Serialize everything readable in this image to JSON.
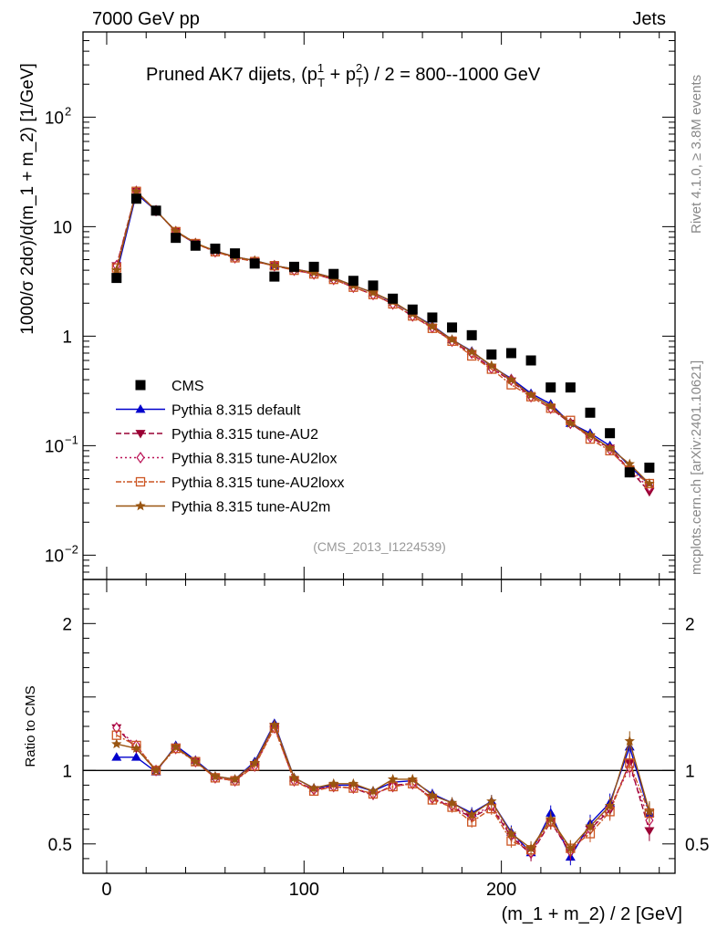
{
  "header": {
    "left": "7000 GeV pp",
    "right": "Jets"
  },
  "side_labels": {
    "rivet": "Rivet 4.1.0, ≥ 3.8M events",
    "mcplots": "mcplots.cern.ch [arXiv:2401.10621]"
  },
  "chart_data": {
    "type": "line",
    "title": "Pruned AK7 dijets, (p_T^1 + p_T^2) / 2 = 800--1000 GeV",
    "title_parts": {
      "prefix": "Pruned AK7 dijets, (p",
      "sub1": "T",
      "sup1": "1",
      "plus": " + p",
      "sub2": "T",
      "sup2": "2",
      "suffix": ") / 2 = 800--1000 GeV"
    },
    "watermark": "(CMS_2013_I1224539)",
    "xlabel": "(m_1 + m_2) / 2 [GeV]",
    "ylabel": "1000/σ   2dσ)/d(m_1 + m_2) [1/GeV]",
    "ratio_ylabel": "Ratio to CMS",
    "xlim": [
      -12,
      288
    ],
    "ylim": [
      0.006,
      600
    ],
    "ylog": true,
    "ratio_ylim": [
      0.3,
      2.3
    ],
    "x_ticks": [
      0,
      100,
      200
    ],
    "y_ticks": [
      {
        "value": 0.01,
        "base": "10",
        "exp": "−2"
      },
      {
        "value": 0.1,
        "base": "10",
        "exp": "−1"
      },
      {
        "value": 1,
        "base": "1",
        "exp": ""
      },
      {
        "value": 10,
        "base": "10",
        "exp": ""
      },
      {
        "value": 100,
        "base": "10",
        "exp": "2"
      }
    ],
    "ratio_ticks": [
      {
        "value": 0.5,
        "label": "0.5"
      },
      {
        "value": 1,
        "label": "1"
      },
      {
        "value": 2,
        "label": "2"
      }
    ],
    "x": [
      5,
      15,
      25,
      35,
      45,
      55,
      65,
      75,
      85,
      95,
      105,
      115,
      125,
      135,
      145,
      155,
      165,
      175,
      185,
      195,
      205,
      215,
      225,
      235,
      245,
      255,
      265,
      275
    ],
    "data": {
      "name": "CMS",
      "values": [
        3.4,
        18,
        14,
        7.9,
        6.7,
        6.3,
        5.7,
        4.6,
        3.5,
        4.3,
        4.3,
        3.7,
        3.2,
        2.9,
        2.2,
        1.75,
        1.48,
        1.2,
        1.02,
        0.68,
        0.7,
        0.6,
        0.34,
        0.34,
        0.2,
        0.13,
        0.057,
        0.063
      ]
    },
    "series": [
      {
        "name": "Pythia 8.315 default",
        "color": "#0000cc",
        "dash": "",
        "marker": "triangle-up",
        "values": [
          3.7,
          20,
          14,
          9.0,
          7.0,
          6.0,
          5.3,
          4.9,
          4.4,
          4.1,
          3.8,
          3.4,
          2.9,
          2.5,
          2.05,
          1.6,
          1.25,
          0.93,
          0.73,
          0.53,
          0.41,
          0.3,
          0.24,
          0.16,
          0.13,
          0.1,
          0.065,
          0.044
        ],
        "ratio": [
          1.09,
          1.09,
          0.99,
          1.17,
          1.07,
          0.96,
          0.94,
          1.06,
          1.32,
          0.95,
          0.88,
          0.9,
          0.9,
          0.86,
          0.92,
          0.93,
          0.84,
          0.78,
          0.71,
          0.79,
          0.58,
          0.44,
          0.71,
          0.41,
          0.64,
          0.78,
          1.16,
          0.71
        ]
      },
      {
        "name": "Pythia 8.315 tune-AU2",
        "color": "#990033",
        "dash": "6,3",
        "marker": "triangle-down",
        "values": [
          4.4,
          21,
          14,
          9.1,
          7.1,
          5.9,
          5.3,
          4.8,
          4.4,
          4.0,
          3.7,
          3.3,
          2.8,
          2.4,
          1.98,
          1.52,
          1.2,
          0.9,
          0.69,
          0.51,
          0.39,
          0.28,
          0.22,
          0.16,
          0.12,
          0.095,
          0.06,
          0.038
        ],
        "ratio": [
          1.29,
          1.15,
          1.0,
          1.16,
          1.06,
          0.95,
          0.93,
          1.04,
          1.3,
          0.93,
          0.87,
          0.89,
          0.88,
          0.83,
          0.9,
          0.91,
          0.81,
          0.75,
          0.68,
          0.75,
          0.55,
          0.43,
          0.65,
          0.44,
          0.6,
          0.73,
          1.05,
          0.59
        ]
      },
      {
        "name": "Pythia 8.315 tune-AU2lox",
        "color": "#bb1155",
        "dash": "2,3",
        "marker": "diamond-open",
        "values": [
          4.4,
          21,
          14,
          9.0,
          7.0,
          5.9,
          5.2,
          4.8,
          4.4,
          4.0,
          3.7,
          3.3,
          2.8,
          2.4,
          1.97,
          1.53,
          1.2,
          0.9,
          0.7,
          0.51,
          0.4,
          0.28,
          0.22,
          0.16,
          0.12,
          0.093,
          0.058,
          0.042
        ],
        "ratio": [
          1.29,
          1.17,
          1.0,
          1.15,
          1.06,
          0.95,
          0.93,
          1.03,
          1.29,
          0.93,
          0.87,
          0.89,
          0.88,
          0.84,
          0.89,
          0.91,
          0.81,
          0.76,
          0.69,
          0.76,
          0.56,
          0.44,
          0.65,
          0.45,
          0.6,
          0.75,
          1.02,
          0.66
        ]
      },
      {
        "name": "Pythia 8.315 tune-AU2loxx",
        "color": "#cc5522",
        "dash": "6,2,2,2",
        "marker": "square-open",
        "values": [
          4.2,
          21,
          14,
          9.0,
          7.0,
          5.9,
          5.2,
          4.8,
          4.4,
          4.0,
          3.7,
          3.3,
          2.8,
          2.4,
          1.97,
          1.53,
          1.18,
          0.9,
          0.66,
          0.5,
          0.36,
          0.28,
          0.22,
          0.17,
          0.115,
          0.09,
          0.06,
          0.045
        ],
        "ratio": [
          1.24,
          1.17,
          1.0,
          1.15,
          1.06,
          0.95,
          0.93,
          1.03,
          1.29,
          0.93,
          0.86,
          0.89,
          0.88,
          0.84,
          0.89,
          0.91,
          0.8,
          0.75,
          0.65,
          0.74,
          0.52,
          0.46,
          0.65,
          0.47,
          0.57,
          0.72,
          1.05,
          0.71
        ]
      },
      {
        "name": "Pythia 8.315 tune-AU2m",
        "color": "#995511",
        "dash": "",
        "marker": "star",
        "values": [
          4.0,
          21,
          14,
          9.1,
          7.1,
          6.0,
          5.3,
          4.9,
          4.4,
          4.1,
          3.8,
          3.4,
          2.9,
          2.5,
          2.07,
          1.6,
          1.23,
          0.93,
          0.72,
          0.54,
          0.4,
          0.29,
          0.23,
          0.16,
          0.125,
          0.095,
          0.068,
          0.045
        ],
        "ratio": [
          1.18,
          1.15,
          1.0,
          1.16,
          1.06,
          0.96,
          0.94,
          1.05,
          1.31,
          0.95,
          0.88,
          0.91,
          0.91,
          0.86,
          0.94,
          0.94,
          0.83,
          0.78,
          0.7,
          0.79,
          0.57,
          0.47,
          0.67,
          0.47,
          0.62,
          0.76,
          1.2,
          0.72
        ]
      }
    ]
  }
}
